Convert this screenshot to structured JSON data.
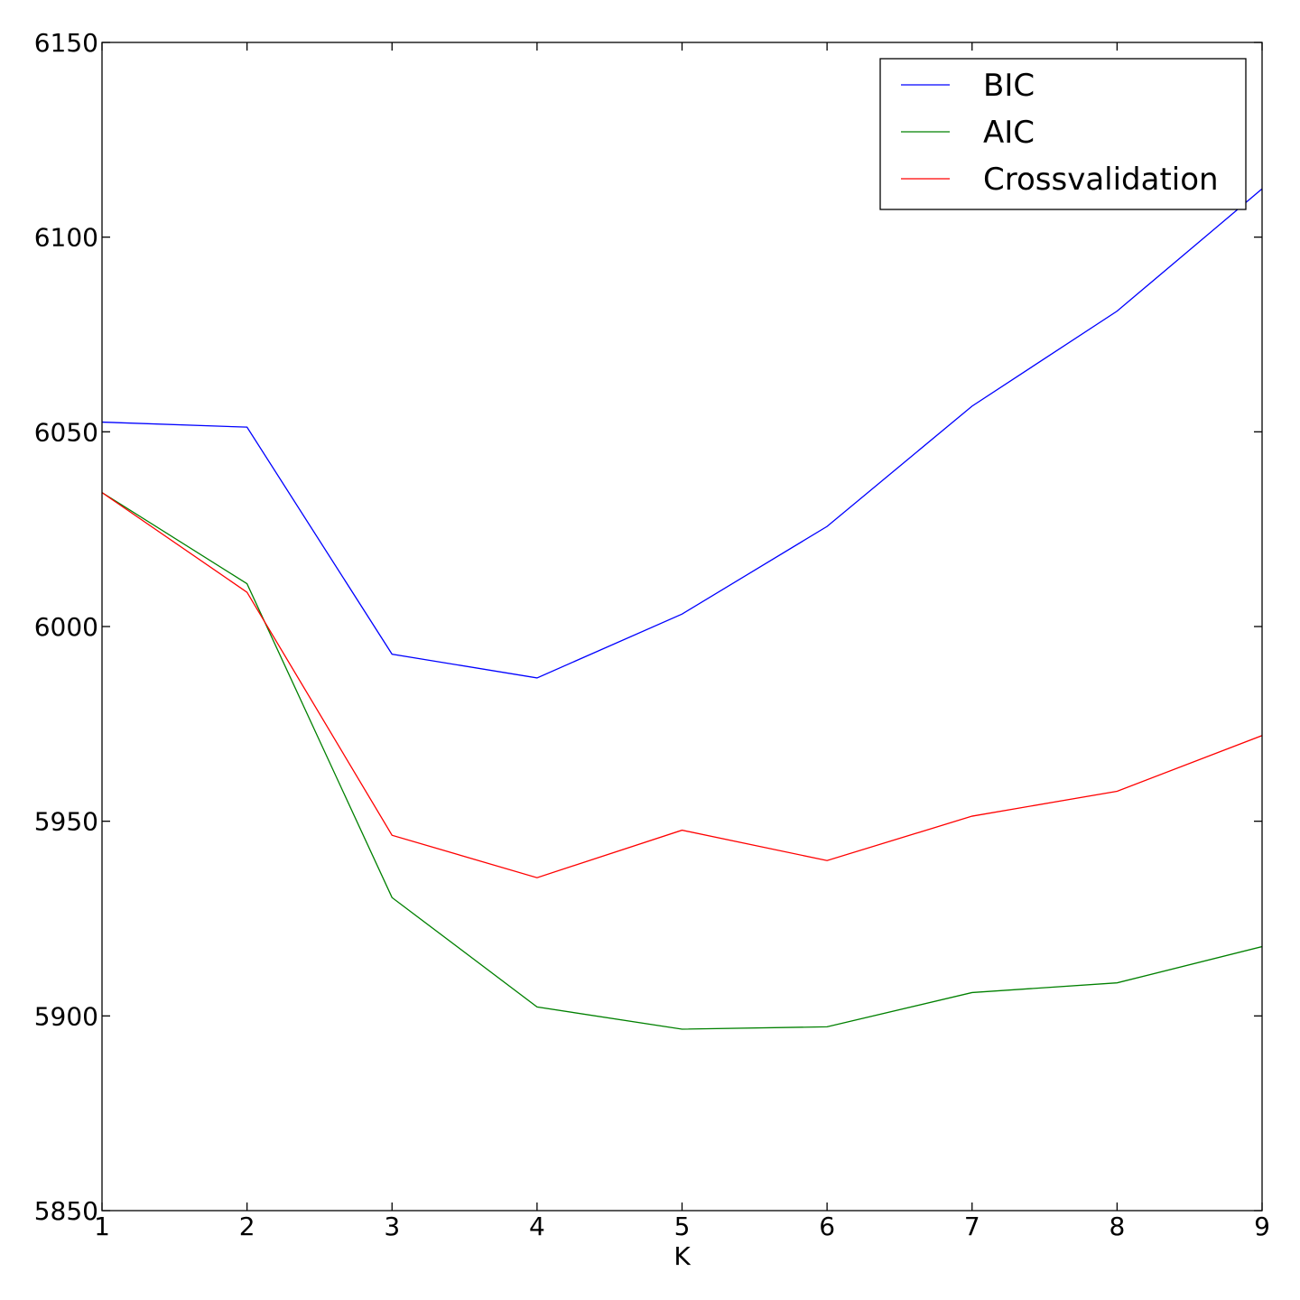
{
  "chart_data": {
    "type": "line",
    "title": "",
    "xlabel": "K",
    "ylabel": "",
    "x": [
      1,
      2,
      3,
      4,
      5,
      6,
      7,
      8,
      9
    ],
    "xlim": [
      1,
      9
    ],
    "ylim": [
      5850,
      6150
    ],
    "xticks": [
      "1",
      "2",
      "3",
      "4",
      "5",
      "6",
      "7",
      "8",
      "9"
    ],
    "yticks": [
      "5850",
      "5900",
      "5950",
      "6000",
      "6050",
      "6100",
      "6150"
    ],
    "grid": false,
    "legend_position": "top-right",
    "series": [
      {
        "name": "BIC",
        "color": "#0000ff",
        "values": [
          6052.5,
          6051.2,
          5992.9,
          5986.8,
          6003.2,
          6025.7,
          6056.6,
          6081.0,
          6112.4
        ]
      },
      {
        "name": "AIC",
        "color": "#008000",
        "values": [
          6034.4,
          6011.0,
          5930.4,
          5902.3,
          5896.6,
          5897.2,
          5906.0,
          5908.5,
          5917.8
        ]
      },
      {
        "name": "Crossvalidation",
        "color": "#ff0000",
        "values": [
          6034.4,
          6008.8,
          5946.4,
          5935.5,
          5947.7,
          5939.9,
          5951.3,
          5957.7,
          5972.0
        ]
      }
    ]
  }
}
